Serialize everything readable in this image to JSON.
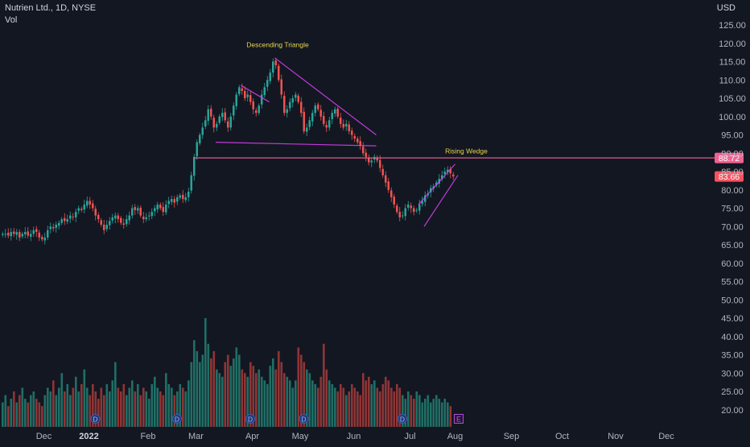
{
  "header": {
    "symbol_label": "Nutrien Ltd., 1D, NYSE",
    "volume_label": "Vol",
    "currency": "USD"
  },
  "colors": {
    "background": "#131722",
    "up": "#26a69a",
    "down": "#ef5350",
    "vol_up": "#1f6f66",
    "vol_down": "#8f3535",
    "pattern_line": "#e040fb",
    "annotation_text": "#e8d44d",
    "axis_text": "#b2b5be",
    "price_label_bg": "#f7525f",
    "level_label_bg": "#f06292"
  },
  "chart_data": {
    "type": "candlestick",
    "x_axis": {
      "labels": [
        "Dec",
        "2022",
        "Feb",
        "Mar",
        "Apr",
        "May",
        "Jun",
        "Jul",
        "Aug",
        "Sep",
        "Oct",
        "Nov",
        "Dec"
      ]
    },
    "y_axis": {
      "labels": [
        "125.00",
        "120.00",
        "115.00",
        "110.00",
        "105.00",
        "100.00",
        "95.00",
        "90.00",
        "85.00",
        "80.00",
        "75.00",
        "70.00",
        "65.00",
        "60.00",
        "55.00",
        "50.00",
        "45.00",
        "40.00",
        "35.00",
        "30.00",
        "25.00",
        "20.00"
      ],
      "range": [
        17.5,
        127.5
      ]
    },
    "horizontal_level": {
      "value": 88.72,
      "label": "88.72"
    },
    "last_price": {
      "value": 83.66,
      "label": "83.66"
    },
    "annotations": [
      {
        "text": "Descending Triangle"
      },
      {
        "text": "Rising Wedge"
      }
    ],
    "event_markers": [
      "D",
      "D",
      "D",
      "D",
      "D",
      "E"
    ],
    "series": {
      "price_path": [
        68,
        68,
        67.5,
        68.5,
        68,
        68.5,
        67,
        68,
        68.5,
        67.5,
        68,
        69,
        68.5,
        67,
        66.5,
        67,
        69,
        70,
        69.5,
        70.5,
        71,
        72,
        71.5,
        72,
        73,
        72.5,
        74,
        75,
        74.5,
        76,
        77,
        76,
        75,
        73,
        72,
        70.5,
        69,
        70.5,
        71.5,
        72.5,
        73,
        72,
        71,
        70.5,
        72,
        73,
        75,
        74.5,
        75,
        73,
        72,
        72.5,
        73,
        74,
        75,
        76,
        75,
        74,
        76,
        77,
        77.5,
        76.5,
        78,
        78.5,
        77.5,
        78,
        79.5,
        84,
        89,
        93,
        95,
        97,
        99,
        102,
        100,
        97,
        98,
        100,
        101,
        99,
        97,
        100,
        103,
        106,
        108,
        107,
        105,
        106,
        104,
        102,
        101,
        103,
        106,
        108,
        110,
        112,
        115,
        114,
        110,
        106,
        101,
        102,
        104,
        105,
        106,
        104,
        101,
        96,
        97,
        99,
        101,
        103,
        102,
        100,
        98,
        97,
        99,
        101,
        102,
        100,
        98,
        97,
        98,
        96,
        95,
        94,
        93,
        92,
        90,
        89,
        87.5,
        88,
        89,
        88,
        86,
        84,
        82,
        80,
        78,
        76,
        74,
        72.5,
        73,
        75,
        76,
        75,
        74,
        74.5,
        76,
        77,
        78.5,
        79,
        80.5,
        81,
        82,
        83,
        84,
        85,
        85.5,
        84.5,
        83.66
      ],
      "volume_levels": [
        22,
        24,
        21,
        23,
        25,
        22,
        24,
        26,
        23,
        22,
        24,
        25,
        23,
        22,
        21,
        24,
        26,
        25,
        28,
        24,
        26,
        30,
        25,
        27,
        24,
        26,
        29,
        25,
        27,
        31,
        26,
        24,
        27,
        25,
        23,
        26,
        24,
        27,
        25,
        28,
        33,
        26,
        25,
        27,
        24,
        26,
        28,
        25,
        27,
        24,
        26,
        25,
        23,
        27,
        29,
        26,
        25,
        24,
        30,
        27,
        26,
        24,
        25,
        27,
        26,
        25,
        28,
        33,
        39,
        36,
        33,
        35,
        45,
        38,
        34,
        36,
        31,
        30,
        29,
        33,
        35,
        32,
        34,
        37,
        35,
        31,
        30,
        29,
        33,
        32,
        30,
        31,
        29,
        28,
        27,
        32,
        34,
        31,
        36,
        33,
        30,
        29,
        28,
        26,
        28,
        37,
        35,
        33,
        31,
        30,
        28,
        27,
        26,
        29,
        38,
        31,
        28,
        27,
        26,
        25,
        27,
        26,
        24,
        25,
        27,
        26,
        25,
        24,
        30,
        28,
        29,
        27,
        28,
        26,
        25,
        27,
        29,
        28,
        26,
        25,
        27,
        26,
        24,
        23,
        25,
        24,
        23,
        25,
        24,
        22,
        23,
        24,
        22,
        23,
        24,
        23,
        22,
        23,
        22,
        21
      ]
    }
  }
}
